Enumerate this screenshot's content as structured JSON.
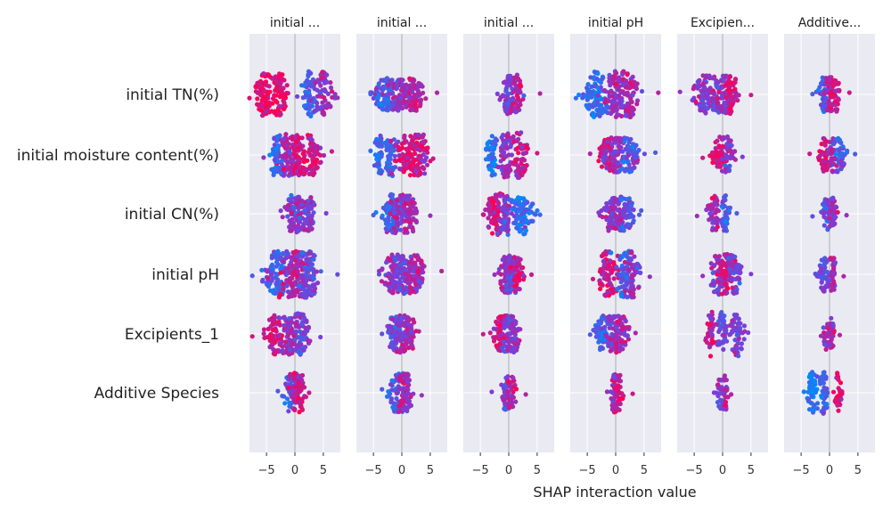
{
  "chart_data": {
    "type": "scatter",
    "subtype": "shap-interaction-beeswarm-matrix",
    "xlabel": "SHAP interaction value",
    "xlim": [
      -8,
      8
    ],
    "xticks": [
      -5,
      0,
      5
    ],
    "xtick_labels": [
      "−5",
      "0",
      "5"
    ],
    "features": [
      "initial TN(%)",
      "initial moisture content(%)",
      "initial CN(%)",
      "initial pH",
      "Excipients_1",
      "Additive Species"
    ],
    "column_titles": [
      "initial ...",
      "initial ...",
      "initial ...",
      "initial pH",
      "Excipien...",
      "Additive..."
    ],
    "colors": {
      "low": "#008bfb",
      "high": "#ff0052",
      "panel_bg": "#eaeaf2",
      "grid": "#ffffff",
      "zero_line": "#999999"
    },
    "grid": true,
    "cells": [
      [
        {
          "clusters": [
            [
              -5.5,
              0.9,
              0.9
            ],
            [
              -2.8,
              1.0,
              0.9
            ],
            [
              2.5,
              0.8,
              0.3
            ],
            [
              5.0,
              1.0,
              0.6
            ]
          ],
          "min": -8,
          "max": 7.5,
          "width": 1.0
        },
        {
          "clusters": [
            [
              -3.0,
              1.3,
              0.3
            ],
            [
              0.0,
              1.2,
              0.6
            ],
            [
              2.5,
              0.9,
              0.7
            ]
          ],
          "min": -5.5,
          "max": 6.2,
          "width": 0.7
        },
        {
          "clusters": [
            [
              0.0,
              0.9,
              0.5
            ],
            [
              1.5,
              0.6,
              0.7
            ]
          ],
          "min": -2.0,
          "max": 5.5,
          "width": 0.85
        },
        {
          "clusters": [
            [
              -3.5,
              1.2,
              0.2
            ],
            [
              0.0,
              1.3,
              0.6
            ],
            [
              2.5,
              1.0,
              0.7
            ]
          ],
          "min": -7.0,
          "max": 7.5,
          "width": 1.0
        },
        {
          "clusters": [
            [
              -3.0,
              1.3,
              0.6
            ],
            [
              0.0,
              1.1,
              0.5
            ],
            [
              1.5,
              0.8,
              0.8
            ]
          ],
          "min": -7.5,
          "max": 5.0,
          "width": 0.85
        },
        {
          "clusters": [
            [
              -1.0,
              0.6,
              0.3
            ],
            [
              0.0,
              0.6,
              0.7
            ],
            [
              1.0,
              0.6,
              0.8
            ]
          ],
          "min": -3.0,
          "max": 3.5,
          "width": 0.75
        }
      ],
      [
        {
          "clusters": [
            [
              -1.5,
              1.2,
              0.6
            ],
            [
              0.5,
              1.0,
              0.8
            ],
            [
              -3.5,
              0.6,
              0.2
            ],
            [
              3.0,
              1.0,
              0.8
            ]
          ],
          "min": -5.5,
          "max": 6.5,
          "width": 0.9
        },
        {
          "clusters": [
            [
              -4.0,
              0.6,
              0.2
            ],
            [
              -2.0,
              0.6,
              0.3
            ],
            [
              1.0,
              1.4,
              0.8
            ],
            [
              3.5,
              0.8,
              0.8
            ]
          ],
          "min": -5.5,
          "max": 5.5,
          "width": 0.9
        },
        {
          "clusters": [
            [
              -3.0,
              0.6,
              0.1
            ],
            [
              -0.5,
              1.0,
              0.6
            ],
            [
              2.0,
              0.8,
              0.8
            ]
          ],
          "min": -4.0,
          "max": 5.0,
          "width": 1.0
        },
        {
          "clusters": [
            [
              -1.5,
              1.0,
              0.7
            ],
            [
              0.5,
              0.8,
              0.6
            ],
            [
              2.5,
              0.9,
              0.3
            ]
          ],
          "min": -4.5,
          "max": 7.0,
          "width": 0.75
        },
        {
          "clusters": [
            [
              -0.5,
              0.8,
              0.8
            ],
            [
              1.0,
              0.6,
              0.5
            ]
          ],
          "min": -3.5,
          "max": 3.5,
          "width": 0.8
        },
        {
          "clusters": [
            [
              -1.0,
              0.6,
              0.8
            ],
            [
              0.5,
              0.5,
              0.6
            ],
            [
              1.8,
              0.6,
              0.3
            ]
          ],
          "min": -3.5,
          "max": 4.5,
          "width": 0.75
        }
      ],
      [
        {
          "clusters": [
            [
              -0.5,
              0.8,
              0.5
            ],
            [
              1.0,
              0.6,
              0.6
            ],
            [
              2.5,
              0.8,
              0.5
            ]
          ],
          "min": -2.5,
          "max": 5.5,
          "width": 0.8
        },
        {
          "clusters": [
            [
              -2.0,
              1.0,
              0.3
            ],
            [
              -0.5,
              1.0,
              0.5
            ],
            [
              1.5,
              0.8,
              0.6
            ]
          ],
          "min": -5.0,
          "max": 5.0,
          "width": 0.85
        },
        {
          "clusters": [
            [
              -2.5,
              1.0,
              0.8
            ],
            [
              -0.5,
              0.8,
              0.5
            ],
            [
              2.5,
              1.2,
              0.2
            ]
          ],
          "min": -4.5,
          "max": 5.5,
          "width": 0.9
        },
        {
          "clusters": [
            [
              -1.0,
              0.8,
              0.5
            ],
            [
              0.5,
              0.7,
              0.6
            ],
            [
              2.0,
              0.8,
              0.3
            ]
          ],
          "min": -3.0,
          "max": 4.5,
          "width": 0.75
        },
        {
          "clusters": [
            [
              -1.5,
              0.7,
              0.6
            ],
            [
              0.5,
              0.5,
              0.3
            ]
          ],
          "min": -4.5,
          "max": 2.5,
          "width": 0.8
        },
        {
          "clusters": [
            [
              -0.5,
              0.6,
              0.4
            ],
            [
              0.5,
              0.5,
              0.6
            ]
          ],
          "min": -3.0,
          "max": 3.0,
          "width": 0.7
        }
      ],
      [
        {
          "clusters": [
            [
              -3.0,
              1.5,
              0.3
            ],
            [
              0.0,
              1.6,
              0.7
            ],
            [
              2.5,
              1.2,
              0.4
            ]
          ],
          "min": -7.5,
          "max": 7.5,
          "width": 1.0
        },
        {
          "clusters": [
            [
              -1.5,
              1.2,
              0.6
            ],
            [
              0.5,
              1.2,
              0.5
            ],
            [
              2.5,
              1.0,
              0.7
            ]
          ],
          "min": -4.0,
          "max": 7.0,
          "width": 0.85
        },
        {
          "clusters": [
            [
              -0.5,
              0.8,
              0.6
            ],
            [
              0.5,
              0.8,
              0.4
            ],
            [
              1.5,
              0.6,
              0.8
            ]
          ],
          "min": -2.5,
          "max": 4.0,
          "width": 0.8
        },
        {
          "clusters": [
            [
              -1.5,
              1.2,
              0.8
            ],
            [
              1.5,
              1.0,
              0.3
            ],
            [
              3.0,
              0.8,
              0.6
            ]
          ],
          "min": -4.0,
          "max": 6.0,
          "width": 1.0
        },
        {
          "clusters": [
            [
              -1.0,
              0.8,
              0.6
            ],
            [
              0.5,
              0.8,
              0.8
            ],
            [
              2.0,
              0.8,
              0.5
            ]
          ],
          "min": -3.5,
          "max": 5.0,
          "width": 0.9
        },
        {
          "clusters": [
            [
              -1.0,
              0.6,
              0.4
            ],
            [
              0.5,
              0.5,
              0.7
            ]
          ],
          "min": -2.5,
          "max": 2.5,
          "width": 0.8
        }
      ],
      [
        {
          "clusters": [
            [
              -3.5,
              1.0,
              0.8
            ],
            [
              -1.0,
              1.0,
              0.6
            ],
            [
              1.0,
              1.0,
              0.5
            ]
          ],
          "min": -7.5,
          "max": 4.5,
          "width": 0.9
        },
        {
          "clusters": [
            [
              -1.5,
              0.8,
              0.4
            ],
            [
              0.0,
              0.8,
              0.6
            ],
            [
              1.5,
              0.6,
              0.7
            ]
          ],
          "min": -3.5,
          "max": 3.0,
          "width": 0.8
        },
        {
          "clusters": [
            [
              -1.5,
              0.8,
              0.8
            ],
            [
              0.0,
              0.7,
              0.5
            ],
            [
              1.0,
              0.5,
              0.6
            ]
          ],
          "min": -4.5,
          "max": 2.0,
          "width": 0.8
        },
        {
          "clusters": [
            [
              -2.5,
              0.8,
              0.3
            ],
            [
              -0.5,
              0.8,
              0.6
            ],
            [
              1.0,
              0.8,
              0.7
            ]
          ],
          "min": -4.5,
          "max": 3.5,
          "width": 0.8
        },
        {
          "clusters": [
            [
              -2.0,
              0.6,
              0.8
            ],
            [
              0.0,
              0.5,
              0.4
            ],
            [
              2.5,
              0.8,
              0.5
            ]
          ],
          "min": -3.0,
          "max": 4.5,
          "width": 1.0
        },
        {
          "clusters": [
            [
              -0.5,
              0.4,
              0.6
            ],
            [
              0.3,
              0.4,
              0.7
            ]
          ],
          "min": -1.5,
          "max": 1.8,
          "width": 0.7
        }
      ],
      [
        {
          "clusters": [
            [
              -1.0,
              0.7,
              0.3
            ],
            [
              0.0,
              0.6,
              0.7
            ],
            [
              1.0,
              0.6,
              0.8
            ]
          ],
          "min": -3.0,
          "max": 2.5,
          "width": 0.85
        },
        {
          "clusters": [
            [
              -1.0,
              0.8,
              0.3
            ],
            [
              0.0,
              0.5,
              0.8
            ],
            [
              1.0,
              0.6,
              0.6
            ]
          ],
          "min": -3.5,
          "max": 3.5,
          "width": 0.85
        },
        {
          "clusters": [
            [
              -0.5,
              0.6,
              0.5
            ],
            [
              0.5,
              0.5,
              0.7
            ]
          ],
          "min": -3.0,
          "max": 3.0,
          "width": 0.8
        },
        {
          "clusters": [
            [
              -0.3,
              0.5,
              0.6
            ],
            [
              0.5,
              0.5,
              0.8
            ]
          ],
          "min": -1.5,
          "max": 3.0,
          "width": 0.85
        },
        {
          "clusters": [
            [
              -0.3,
              0.5,
              0.5
            ],
            [
              0.5,
              0.3,
              0.7
            ]
          ],
          "min": -1.5,
          "max": 1.5,
          "width": 0.75
        },
        {
          "clusters": [
            [
              -3.0,
              0.8,
              0.1
            ],
            [
              -1.0,
              0.6,
              0.3
            ],
            [
              1.5,
              0.4,
              0.9
            ]
          ],
          "min": -4.5,
          "max": 2.2,
          "width": 0.9
        }
      ]
    ]
  }
}
